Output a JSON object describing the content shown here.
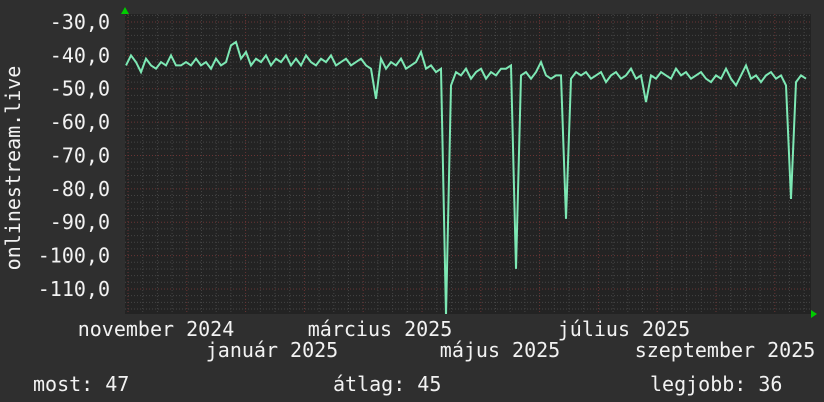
{
  "chart_data": {
    "type": "line",
    "title": "",
    "ylabel": "onlinestream.live",
    "xlabel": "",
    "ylim": [
      -117.5,
      -27.6
    ],
    "yticks": [
      -30,
      -40,
      -50,
      -60,
      -70,
      -80,
      -90,
      -100,
      -110
    ],
    "ytick_labels": [
      "-30,0",
      "-40,0",
      "-50,0",
      "-60,0",
      "-70,0",
      "-80,0",
      "-90,0",
      "-100,0",
      "-110,0"
    ],
    "xtick_labels": [
      "november 2024",
      "január 2025",
      "március 2025",
      "május 2025",
      "július 2025",
      "szeptember 2025"
    ],
    "grid": true,
    "line_color": "#7de8b4",
    "values": [
      -43,
      -40,
      -42,
      -45,
      -41,
      -43,
      -44,
      -42,
      -43,
      -40,
      -43,
      -43,
      -42,
      -43,
      -41,
      -43,
      -42,
      -44,
      -41,
      -43,
      -42,
      -37,
      -36,
      -41,
      -39,
      -43,
      -41,
      -42,
      -40,
      -43,
      -41,
      -42,
      -40,
      -43,
      -41,
      -43,
      -40,
      -42,
      -43,
      -41,
      -42,
      -40,
      -43,
      -42,
      -41,
      -43,
      -42,
      -41,
      -43,
      -44,
      -53,
      -41,
      -44,
      -42,
      -43,
      -41,
      -44,
      -43,
      -42,
      -39,
      -44,
      -43,
      -45,
      -44,
      -118,
      -49,
      -45,
      -46,
      -44,
      -47,
      -45,
      -44,
      -47,
      -45,
      -46,
      -44,
      -44,
      -43,
      -104,
      -46,
      -45,
      -47,
      -45,
      -42,
      -46,
      -47,
      -46,
      -46,
      -89,
      -47,
      -45,
      -46,
      -45,
      -47,
      -46,
      -45,
      -48,
      -46,
      -45,
      -47,
      -46,
      -44,
      -47,
      -46,
      -54,
      -46,
      -47,
      -45,
      -46,
      -47,
      -44,
      -46,
      -45,
      -47,
      -46,
      -45,
      -47,
      -48,
      -46,
      -47,
      -44,
      -47,
      -49,
      -46,
      -43,
      -47,
      -46,
      -48,
      -46,
      -45,
      -47,
      -46,
      -49,
      -83,
      -48,
      -46,
      -47
    ]
  },
  "legend": {
    "current": "most: 47",
    "average": "átlag: 45",
    "best": "legjobb: 36"
  }
}
